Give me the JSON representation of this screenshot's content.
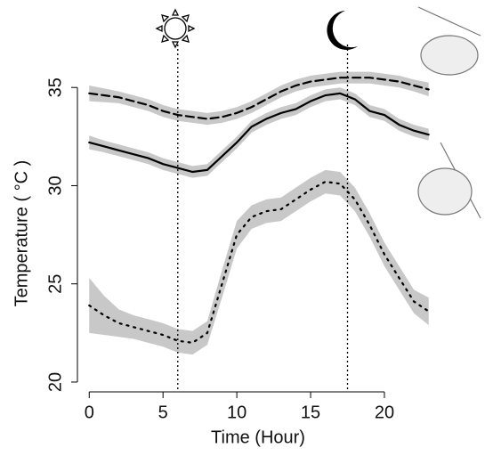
{
  "chart_data": {
    "type": "line",
    "x_label": "Time (Hour)",
    "y_label": "Temperature ( °C )",
    "x": [
      0,
      1,
      2,
      3,
      4,
      5,
      6,
      7,
      8,
      9,
      10,
      11,
      12,
      13,
      14,
      15,
      16,
      17,
      18,
      19,
      20,
      21,
      22,
      23
    ],
    "xlim": [
      -0.8,
      23.5
    ],
    "ylim": [
      19.5,
      39
    ],
    "xticks": [
      0,
      5,
      10,
      15,
      20
    ],
    "yticks": [
      20,
      25,
      30,
      35
    ],
    "vlines": [
      6,
      17.5
    ],
    "band_color": "#c8c8c8",
    "series": [
      {
        "color": "#000000",
        "dash": "dashed",
        "values": [
          34.7,
          34.6,
          34.5,
          34.3,
          34.1,
          33.8,
          33.6,
          33.5,
          33.4,
          33.5,
          33.7,
          34.0,
          34.4,
          34.8,
          35.1,
          35.3,
          35.4,
          35.5,
          35.5,
          35.5,
          35.4,
          35.3,
          35.1,
          34.9
        ],
        "ci": [
          0.4,
          0.35,
          0.3,
          0.3,
          0.3,
          0.3,
          0.3,
          0.3,
          0.3,
          0.3,
          0.3,
          0.3,
          0.3,
          0.3,
          0.3,
          0.3,
          0.3,
          0.3,
          0.3,
          0.3,
          0.3,
          0.3,
          0.3,
          0.35
        ]
      },
      {
        "color": "#000000",
        "dash": "solid",
        "values": [
          32.2,
          32.0,
          31.8,
          31.6,
          31.4,
          31.1,
          30.9,
          30.7,
          30.8,
          31.5,
          32.2,
          33.0,
          33.4,
          33.7,
          33.9,
          34.3,
          34.6,
          34.7,
          34.4,
          33.8,
          33.6,
          33.1,
          32.8,
          32.6
        ],
        "ci": [
          0.35,
          0.3,
          0.3,
          0.3,
          0.3,
          0.3,
          0.3,
          0.3,
          0.3,
          0.3,
          0.3,
          0.3,
          0.3,
          0.3,
          0.3,
          0.3,
          0.3,
          0.3,
          0.3,
          0.3,
          0.3,
          0.3,
          0.3,
          0.3
        ]
      },
      {
        "color": "#000000",
        "dash": "dotted",
        "values": [
          23.9,
          23.4,
          23.0,
          22.8,
          22.6,
          22.4,
          22.1,
          22.0,
          22.5,
          25.0,
          27.5,
          28.4,
          28.7,
          28.8,
          29.3,
          29.8,
          30.2,
          30.1,
          29.3,
          28.0,
          26.5,
          25.3,
          24.1,
          23.6
        ],
        "ci": [
          1.4,
          1.0,
          0.7,
          0.6,
          0.6,
          0.6,
          0.6,
          0.6,
          0.6,
          0.7,
          0.7,
          0.6,
          0.6,
          0.6,
          0.6,
          0.6,
          0.6,
          0.6,
          0.6,
          0.6,
          0.6,
          0.6,
          0.6,
          0.7
        ]
      }
    ]
  }
}
